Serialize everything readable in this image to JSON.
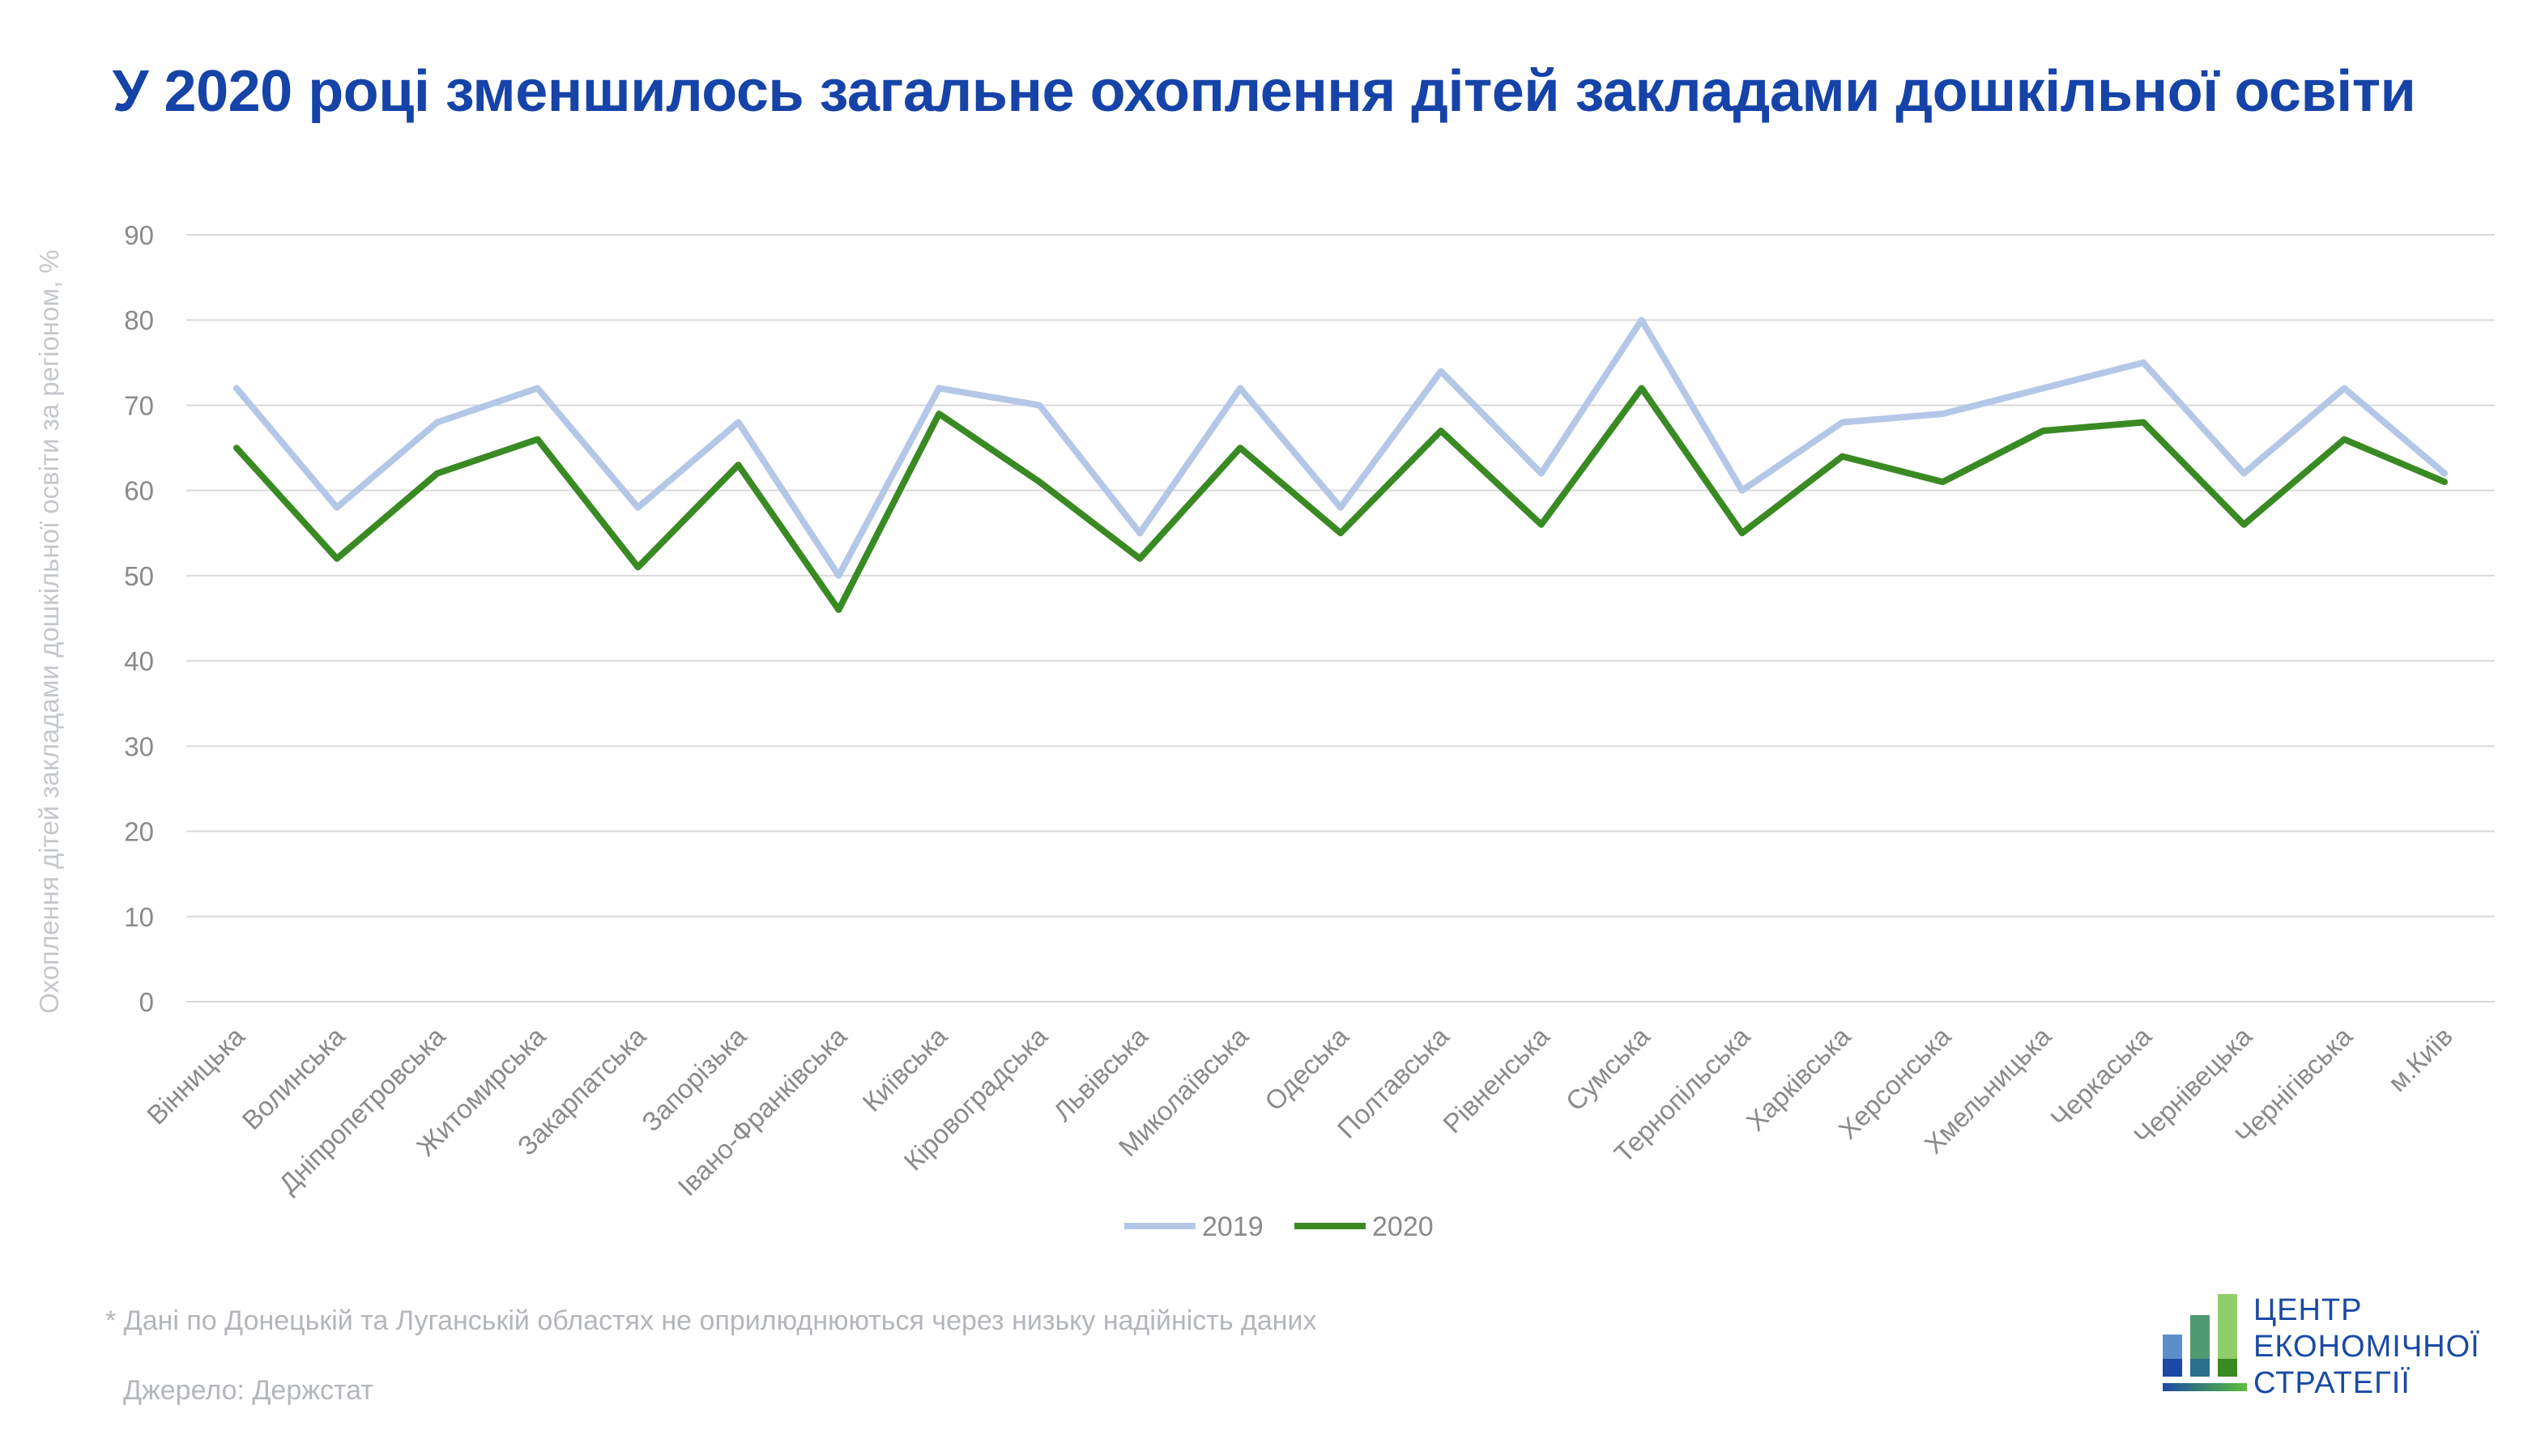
{
  "title": "У 2020 році зменшилось загальне охоплення дітей закладами дошкільної освіти",
  "footnote": "* Дані по Донецькій та Луганській областях не оприлюднюються через низьку надійність даних",
  "source": "Джерело: Держстат",
  "logo": {
    "line1": "ЦЕНТР",
    "line2": "ЕКОНОМІЧНОЇ",
    "line3": "СТРАТЕГІЇ"
  },
  "colors": {
    "title": "#1543a8",
    "series_2019": "#b4c7e7",
    "series_2020": "#3a8a23",
    "grid": "#d9d9d9"
  },
  "chart_data": {
    "type": "line",
    "ylabel": "Охоплення дітей закладами дошкільної освіти за регіоном, %",
    "xlabel": "",
    "ylim": [
      0,
      90
    ],
    "yticks": [
      0,
      10,
      20,
      30,
      40,
      50,
      60,
      70,
      80,
      90
    ],
    "grid": true,
    "legend": "bottom-center",
    "categories": [
      "Вінницька",
      "Волинська",
      "Дніпропетровська",
      "Житомирська",
      "Закарпатська",
      "Запорізька",
      "Івано-Франківська",
      "Київська",
      "Кіровоградська",
      "Львівська",
      "Миколаївська",
      "Одеська",
      "Полтавська",
      "Рівненська",
      "Сумська",
      "Тернопільська",
      "Харківська",
      "Херсонська",
      "Хмельницька",
      "Черкаська",
      "Чернівецька",
      "Чернігівська",
      "м.Київ"
    ],
    "series": [
      {
        "name": "2019",
        "color": "#b4c7e7",
        "values": [
          72,
          58,
          68,
          72,
          58,
          68,
          50,
          72,
          70,
          55,
          72,
          58,
          74,
          62,
          80,
          60,
          68,
          69,
          72,
          75,
          62,
          72,
          62
        ]
      },
      {
        "name": "2020",
        "color": "#3a8a23",
        "values": [
          65,
          52,
          62,
          66,
          51,
          63,
          46,
          69,
          61,
          52,
          65,
          55,
          67,
          56,
          72,
          55,
          64,
          61,
          67,
          68,
          56,
          66,
          61
        ]
      }
    ]
  }
}
